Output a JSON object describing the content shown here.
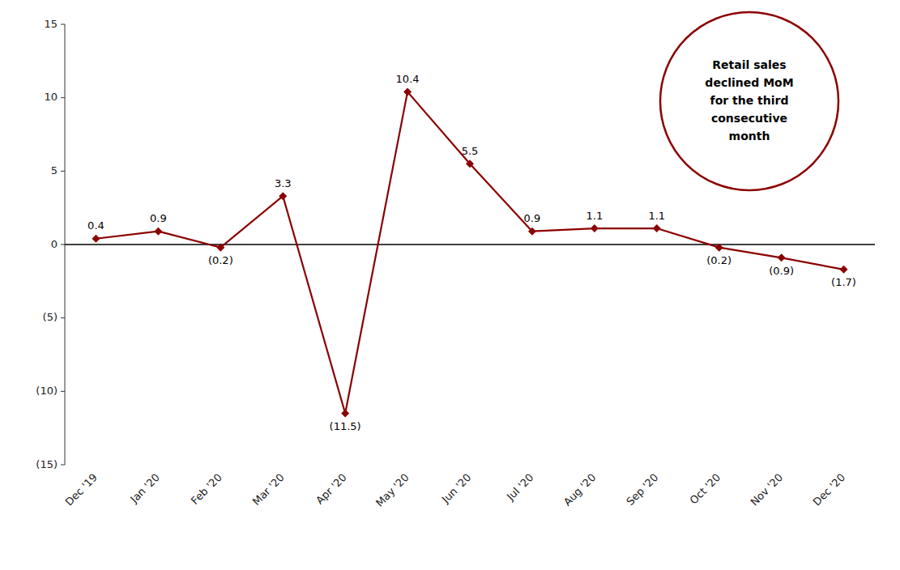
{
  "chart_data": {
    "type": "line",
    "categories": [
      "Dec '19",
      "Jan '20",
      "Feb '20",
      "Mar '20",
      "Apr '20",
      "May '20",
      "Jun '20",
      "Jul '20",
      "Aug '20",
      "Sep '20",
      "Oct '20",
      "Nov '20",
      "Dec '20"
    ],
    "values": [
      0.4,
      0.9,
      -0.2,
      3.3,
      -11.5,
      10.4,
      5.5,
      0.9,
      1.1,
      1.1,
      -0.2,
      -0.9,
      -1.7
    ],
    "value_labels": [
      "0.4",
      "0.9",
      "(0.2)",
      "3.3",
      "(11.5)",
      "10.4",
      "5.5",
      "0.9",
      "1.1",
      "1.1",
      "(0.2)",
      "(0.9)",
      "(1.7)"
    ],
    "data_labels": true,
    "color": "#8B0000",
    "marker": "diamond",
    "ylim": [
      -15,
      15
    ],
    "yticks": [
      {
        "value": -15,
        "label": "(15)"
      },
      {
        "value": -10,
        "label": "(10)"
      },
      {
        "value": -5,
        "label": "(5)"
      },
      0,
      5,
      10,
      15
    ],
    "grid": false,
    "annotation": "Retail sales\ndeclined MoM\nfor the third\nconsecutive\nmonth"
  }
}
